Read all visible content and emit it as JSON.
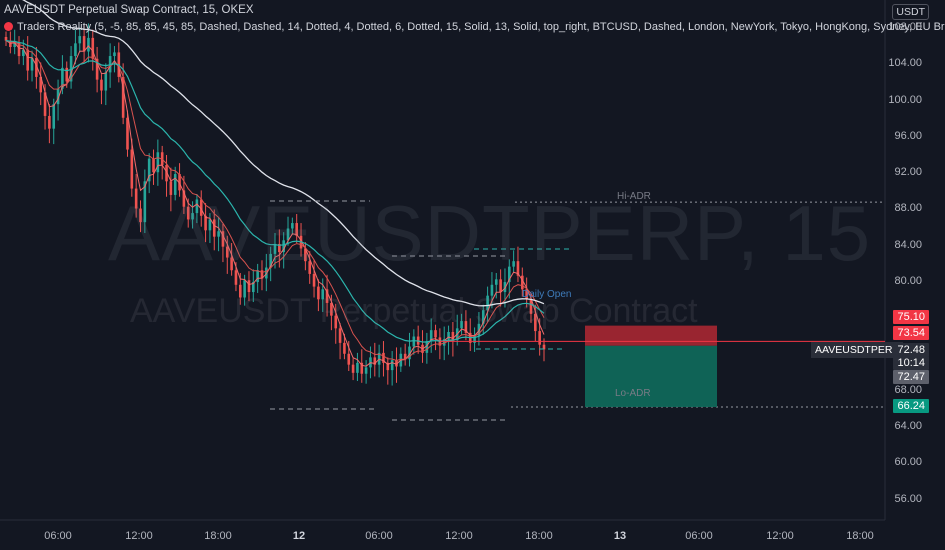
{
  "header": {
    "title": "AAVEUSDT Perpetual Swap Contract, 15, OKEX",
    "indicator": "Traders Reality (5, -5, 85, 85, 45, 85, Dashed, Dashed, 14, Dotted, 4, Dotted, 6, Dotted, 15, Solid, 13, Solid, top_right, BTCUSD, Dashed, London, NewYork, Tokyo, HongKong, Sydney, EU Br"
  },
  "watermark": {
    "symbol": "AAVEUSDTPERP, 15",
    "description": "AAVEUSDT Perpetual Swap Contract"
  },
  "axis": {
    "currency": "USDT",
    "y_ticks": [
      "108.00",
      "104.00",
      "100.00",
      "96.00",
      "92.00",
      "88.00",
      "84.00",
      "80.00",
      "68.00",
      "64.00",
      "60.00",
      "56.00"
    ],
    "x_ticks": [
      "06:00",
      "12:00",
      "18:00",
      "12",
      "06:00",
      "12:00",
      "18:00",
      "13",
      "06:00",
      "12:00",
      "18:00"
    ]
  },
  "price_tags": {
    "t1": "75.10",
    "t2": "73.54",
    "last_symbol": "AAVEUSDTPERP",
    "last_price": "72.48",
    "countdown": "10:14",
    "t3": "72.47",
    "t4": "66.24"
  },
  "levels": {
    "hi_adr": "Hi-ADR",
    "lo_adr": "Lo-ADR",
    "daily_open": "Daily Open"
  },
  "colors": {
    "background": "#131722",
    "up": "#26a69a",
    "down": "#ef5350",
    "ema_white": "#e0e3eb",
    "ema_teal": "#2bb5ad",
    "ema_red": "#f26b6b",
    "stop_zone": "#b22833",
    "target_zone": "#0f6b5c"
  },
  "chart_data": {
    "type": "candlestick",
    "title": "AAVEUSDT Perpetual Swap Contract, 15, OKEX",
    "y_range": [
      52,
      110
    ],
    "x_labels": [
      "06:00",
      "12:00",
      "18:00",
      "12",
      "06:00",
      "12:00",
      "18:00",
      "13",
      "06:00",
      "12:00",
      "18:00"
    ],
    "close_path": [
      106.5,
      105.8,
      106.3,
      104.8,
      105.5,
      103.2,
      104.6,
      102.5,
      100.8,
      98.2,
      96.8,
      99.5,
      101.2,
      103.5,
      102.0,
      104.8,
      106.2,
      107.0,
      105.3,
      106.8,
      104.5,
      102.2,
      101.0,
      103.0,
      104.8,
      105.2,
      102.5,
      98.0,
      94.5,
      90.2,
      88.0,
      86.5,
      91.0,
      93.5,
      92.0,
      94.2,
      92.8,
      91.0,
      89.5,
      91.8,
      90.0,
      88.2,
      86.8,
      87.5,
      89.0,
      87.2,
      85.6,
      86.8,
      84.9,
      85.5,
      83.8,
      82.6,
      81.2,
      79.6,
      78.2,
      80.1,
      78.8,
      79.9,
      81.2,
      80.3,
      81.5,
      83.0,
      84.1,
      83.2,
      84.5,
      85.8,
      86.4,
      85.0,
      83.6,
      82.2,
      80.8,
      79.4,
      78.0,
      79.1,
      77.6,
      76.2,
      74.8,
      73.2,
      72.0,
      70.8,
      69.9,
      71.0,
      69.8,
      70.5,
      71.6,
      70.8,
      72.1,
      71.0,
      70.2,
      71.3,
      70.6,
      72.0,
      71.4,
      72.8,
      73.9,
      73.0,
      72.1,
      73.4,
      74.6,
      73.8,
      72.9,
      73.6,
      74.4,
      73.5,
      74.8,
      75.6,
      74.3,
      73.2,
      74.0,
      75.3,
      76.8,
      78.4,
      79.6,
      80.2,
      78.8,
      79.9,
      81.6,
      82.2,
      80.6,
      79.1,
      78.0,
      76.4,
      74.5,
      73.0,
      72.48
    ],
    "high_adr": 88.7,
    "low_adr": 66.24,
    "last_price": 72.48,
    "position": {
      "entry": 73.54,
      "stop": 75.1,
      "target": 66.24
    }
  }
}
